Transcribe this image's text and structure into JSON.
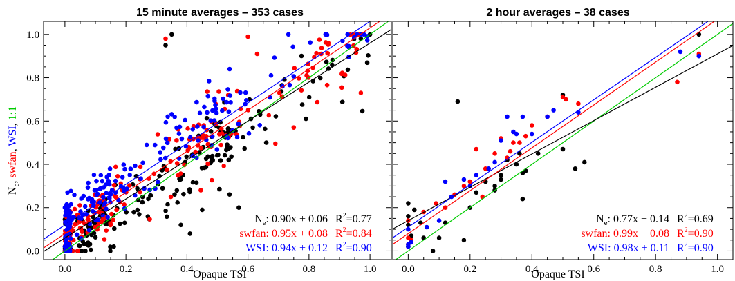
{
  "chart_data": [
    {
      "type": "scatter",
      "title": "15 minute averages – 353 cases",
      "xlabel": "Opaque TSI",
      "ylabel": [
        "N",
        "e",
        ", ",
        "swfan",
        ", ",
        "WSI",
        ", ",
        "1:1"
      ],
      "xlim": [
        -0.07,
        1.07
      ],
      "ylim": [
        -0.04,
        1.06
      ],
      "xticks": [
        0.0,
        0.2,
        0.4,
        0.6,
        0.8,
        1.0
      ],
      "yticks": [
        0.0,
        0.2,
        0.4,
        0.6,
        0.8,
        1.0
      ],
      "tick_labels": [
        "0.0",
        "0.2",
        "0.4",
        "0.6",
        "0.8",
        "1.0"
      ],
      "series": [
        {
          "name": "N",
          "color": "#000000",
          "slope": 0.9,
          "intercept": 0.06,
          "r2": "0.77",
          "offset": -0.04,
          "n": 353,
          "seed": 11,
          "x": [
            0.35,
            0.33,
            0.61,
            0.66,
            0.45,
            0.97,
            1.0,
            0.79,
            0.64,
            0.57,
            0.38,
            0.41,
            0.16,
            0.0,
            0.0
          ],
          "y": [
            1.0,
            0.95,
            0.61,
            0.5,
            0.19,
            0.98,
            1.0,
            0.61,
            0.63,
            0.2,
            0.12,
            0.08,
            0.02,
            0.0,
            0.01
          ]
        },
        {
          "name": "swfan",
          "color": "#ff0000",
          "slope": 0.95,
          "intercept": 0.08,
          "r2": "0.84",
          "offset": 0.0,
          "n": 353,
          "seed": 23,
          "x": [
            0.6,
            0.63,
            0.84,
            0.97,
            0.75,
            0.33,
            0.0
          ],
          "y": [
            0.99,
            0.91,
            0.91,
            0.73,
            0.57,
            0.98,
            0.0
          ]
        },
        {
          "name": "WSI",
          "color": "#0000ff",
          "slope": 0.94,
          "intercept": 0.12,
          "r2": "0.90",
          "offset": 0.02,
          "n": 353,
          "seed": 37,
          "x": [
            0.98,
            0.91,
            0.54,
            0.0,
            0.0
          ],
          "y": [
            1.0,
            0.97,
            0.84,
            0.2,
            0.02
          ]
        }
      ],
      "one_to_one_color": "#00cc00",
      "annotations": {
        "N": {
          "label": "N",
          "sub": "e",
          "eq": ": 0.90x + 0.06",
          "r2label": "R",
          "sup": "2",
          "r2": "=0.77"
        },
        "swfan": {
          "label": "swfan",
          "eq": ": 0.95x + 0.08",
          "r2label": "R",
          "sup": "2",
          "r2": "=0.84"
        },
        "WSI": {
          "label": "WSI",
          "eq": ": 0.94x + 0.12",
          "r2label": "R",
          "sup": "2",
          "r2": "=0.90"
        }
      }
    },
    {
      "type": "scatter",
      "title": "2 hour averages – 38 cases",
      "xlabel": "Opaque TSI",
      "xlim": [
        -0.05,
        1.05
      ],
      "ylim": [
        -0.04,
        1.06
      ],
      "xticks": [
        0.0,
        0.2,
        0.4,
        0.6,
        0.8,
        1.0
      ],
      "yticks": [
        0.0,
        0.2,
        0.4,
        0.6,
        0.8,
        1.0
      ],
      "tick_labels": [
        "0.0",
        "0.2",
        "0.4",
        "0.6",
        "0.8",
        "1.0"
      ],
      "series": [
        {
          "name": "N",
          "color": "#000000",
          "slope": 0.77,
          "intercept": 0.14,
          "r2": "0.69",
          "x": [
            0.0,
            0.0,
            0.01,
            0.0,
            0.02,
            0.08,
            0.04,
            0.1,
            0.16,
            0.12,
            0.18,
            0.22,
            0.2,
            0.25,
            0.28,
            0.3,
            0.32,
            0.35,
            0.37,
            0.38,
            0.37,
            0.3,
            0.42,
            0.5,
            0.5,
            0.54,
            0.57,
            0.94,
            0.0,
            0.05,
            0.28,
            0.36
          ],
          "y": [
            0.22,
            0.12,
            0.07,
            0.02,
            0.19,
            0.0,
            0.13,
            0.06,
            0.69,
            0.13,
            0.05,
            0.27,
            0.2,
            0.32,
            0.28,
            0.35,
            0.42,
            0.4,
            0.36,
            0.37,
            0.24,
            0.33,
            0.45,
            0.72,
            0.47,
            0.38,
            0.41,
            1.0,
            0.16,
            0.06,
            0.3,
            0.45
          ]
        },
        {
          "name": "swfan",
          "color": "#ff0000",
          "slope": 0.99,
          "intercept": 0.08,
          "r2": "0.90",
          "x": [
            0.0,
            0.01,
            0.0,
            0.05,
            0.12,
            0.15,
            0.18,
            0.2,
            0.22,
            0.25,
            0.28,
            0.3,
            0.32,
            0.34,
            0.36,
            0.38,
            0.4,
            0.45,
            0.5,
            0.51,
            0.55,
            0.87,
            0.94,
            0.0,
            0.09,
            0.24,
            0.33
          ],
          "y": [
            0.06,
            0.05,
            0.14,
            0.18,
            0.2,
            0.26,
            0.3,
            0.32,
            0.47,
            0.38,
            0.45,
            0.52,
            0.43,
            0.5,
            0.5,
            0.53,
            0.58,
            0.62,
            0.71,
            0.7,
            0.68,
            0.78,
            0.91,
            0.03,
            0.22,
            0.25,
            0.46
          ]
        },
        {
          "name": "WSI",
          "color": "#0000ff",
          "slope": 0.98,
          "intercept": 0.11,
          "r2": "0.90",
          "x": [
            0.0,
            0.01,
            0.0,
            0.06,
            0.1,
            0.14,
            0.18,
            0.2,
            0.22,
            0.26,
            0.28,
            0.3,
            0.34,
            0.35,
            0.37,
            0.4,
            0.45,
            0.47,
            0.55,
            0.88,
            0.94,
            0.0,
            0.12,
            0.32
          ],
          "y": [
            0.1,
            0.04,
            0.02,
            0.11,
            0.14,
            0.25,
            0.33,
            0.3,
            0.35,
            0.38,
            0.41,
            0.51,
            0.55,
            0.54,
            0.62,
            0.54,
            0.62,
            0.65,
            0.64,
            0.92,
            0.9,
            0.03,
            0.32,
            0.62
          ]
        }
      ],
      "one_to_one_color": "#00cc00",
      "annotations": {
        "N": {
          "label": "N",
          "sub": "e",
          "eq": ": 0.77x + 0.14",
          "r2label": "R",
          "sup": "2",
          "r2": "=0.69"
        },
        "swfan": {
          "label": "swfan",
          "eq": ": 0.99x + 0.08",
          "r2label": "R",
          "sup": "2",
          "r2": "=0.90"
        },
        "WSI": {
          "label": "WSI",
          "eq": ": 0.98x + 0.11",
          "r2label": "R",
          "sup": "2",
          "r2": "=0.90"
        }
      }
    }
  ]
}
